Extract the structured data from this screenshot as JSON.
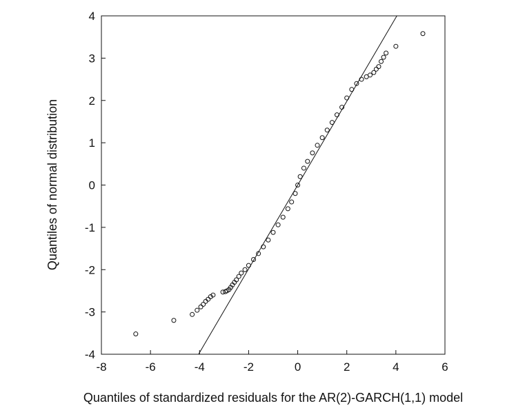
{
  "chart_data": {
    "type": "scatter",
    "title": "",
    "xlabel": "Quantiles of standardized residuals for the AR(2)-GARCH(1,1) model",
    "ylabel": "Quantiles of normal distribution",
    "xlim": [
      -8,
      6
    ],
    "ylim": [
      -4,
      4
    ],
    "x_ticks": [
      -8,
      -6,
      -4,
      -2,
      0,
      2,
      4,
      6
    ],
    "y_ticks": [
      -4,
      -3,
      -2,
      -1,
      0,
      1,
      2,
      3,
      4
    ],
    "x_tick_labels": [
      "-8",
      "-6",
      "-4",
      "-2",
      "0",
      "2",
      "4",
      "6"
    ],
    "y_tick_labels": [
      "-4",
      "-3",
      "-2",
      "-1",
      "0",
      "1",
      "2",
      "3",
      "4"
    ],
    "grid": false,
    "reference_line": {
      "from": [
        -4.04,
        -4
      ],
      "to": [
        4.04,
        4
      ]
    },
    "series": [
      {
        "marker": "open-circle",
        "points": [
          [
            -6.6,
            -3.52
          ],
          [
            -5.05,
            -3.2
          ],
          [
            -4.3,
            -3.06
          ],
          [
            -4.1,
            -2.96
          ],
          [
            -3.95,
            -2.88
          ],
          [
            -3.85,
            -2.82
          ],
          [
            -3.75,
            -2.75
          ],
          [
            -3.65,
            -2.7
          ],
          [
            -3.55,
            -2.64
          ],
          [
            -3.45,
            -2.6
          ],
          [
            -3.05,
            -2.53
          ],
          [
            -2.95,
            -2.52
          ],
          [
            -2.88,
            -2.5
          ],
          [
            -2.8,
            -2.47
          ],
          [
            -2.73,
            -2.42
          ],
          [
            -2.66,
            -2.36
          ],
          [
            -2.58,
            -2.3
          ],
          [
            -2.5,
            -2.24
          ],
          [
            -2.4,
            -2.16
          ],
          [
            -2.3,
            -2.08
          ],
          [
            -2.15,
            -2.0
          ],
          [
            -2.0,
            -1.9
          ],
          [
            -1.8,
            -1.76
          ],
          [
            -1.6,
            -1.62
          ],
          [
            -1.4,
            -1.46
          ],
          [
            -1.2,
            -1.3
          ],
          [
            -1.0,
            -1.12
          ],
          [
            -0.8,
            -0.94
          ],
          [
            -0.6,
            -0.76
          ],
          [
            -0.4,
            -0.56
          ],
          [
            -0.25,
            -0.4
          ],
          [
            -0.1,
            -0.2
          ],
          [
            0.0,
            0.0
          ],
          [
            0.1,
            0.2
          ],
          [
            0.25,
            0.4
          ],
          [
            0.4,
            0.56
          ],
          [
            0.6,
            0.76
          ],
          [
            0.8,
            0.94
          ],
          [
            1.0,
            1.12
          ],
          [
            1.2,
            1.3
          ],
          [
            1.4,
            1.48
          ],
          [
            1.6,
            1.66
          ],
          [
            1.8,
            1.84
          ],
          [
            2.0,
            2.06
          ],
          [
            2.2,
            2.26
          ],
          [
            2.4,
            2.4
          ],
          [
            2.6,
            2.5
          ],
          [
            2.8,
            2.56
          ],
          [
            2.95,
            2.6
          ],
          [
            3.1,
            2.66
          ],
          [
            3.2,
            2.74
          ],
          [
            3.3,
            2.8
          ],
          [
            3.4,
            2.92
          ],
          [
            3.5,
            3.02
          ],
          [
            3.6,
            3.12
          ],
          [
            4.0,
            3.28
          ],
          [
            5.1,
            3.58
          ]
        ]
      }
    ]
  }
}
